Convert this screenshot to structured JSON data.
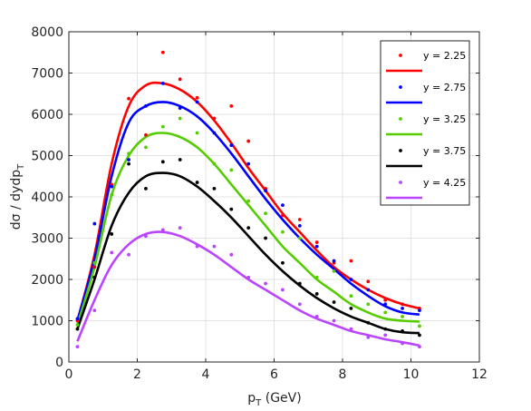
{
  "chart_data": {
    "type": "scatter",
    "xlabel": {
      "main": "p",
      "sub": "T",
      "rest": " (GeV)"
    },
    "ylabel": {
      "main": "dσ / dydp",
      "sub": "T"
    },
    "xlim": [
      0,
      12
    ],
    "ylim": [
      0,
      8000
    ],
    "xticks": [
      "0",
      "2",
      "4",
      "6",
      "8",
      "10",
      "12"
    ],
    "yticks": [
      "0",
      "1000",
      "2000",
      "3000",
      "4000",
      "5000",
      "6000",
      "7000",
      "8000"
    ],
    "grid": true,
    "legend_position": "top-right",
    "x": [
      0.25,
      0.75,
      1.25,
      1.75,
      2.25,
      2.75,
      3.25,
      3.75,
      4.25,
      4.75,
      5.25,
      5.75,
      6.25,
      6.75,
      7.25,
      7.75,
      8.25,
      8.75,
      9.25,
      9.75,
      10.25
    ],
    "series": [
      {
        "name": "y = 2.25",
        "color": "#ff0000",
        "points": [
          1000,
          2300,
          4300,
          6380,
          5500,
          7500,
          6850,
          6400,
          5900,
          6200,
          5350,
          4200,
          3550,
          3450,
          2900,
          2400,
          2450,
          1950,
          1500,
          1400,
          1300
        ],
        "fit": [
          1000,
          2600,
          4800,
          6200,
          6700,
          6750,
          6600,
          6300,
          5850,
          5300,
          4700,
          4150,
          3600,
          3150,
          2700,
          2300,
          2000,
          1750,
          1550,
          1400,
          1300
        ]
      },
      {
        "name": "y = 2.75",
        "color": "#0000ff",
        "points": [
          1050,
          3350,
          4250,
          4900,
          6200,
          6750,
          6150,
          6300,
          5550,
          5250,
          4800,
          4150,
          3800,
          3300,
          2800,
          2450,
          2000,
          1750,
          1400,
          1300,
          1250
        ],
        "fit": [
          1000,
          2500,
          4500,
          5800,
          6200,
          6300,
          6200,
          5950,
          5550,
          5050,
          4500,
          3950,
          3450,
          3000,
          2600,
          2250,
          1900,
          1600,
          1350,
          1200,
          1150
        ]
      },
      {
        "name": "y = 3.25",
        "color": "#55cc00",
        "points": [
          900,
          2400,
          4050,
          5050,
          5200,
          5700,
          5900,
          5550,
          4800,
          4650,
          3900,
          3600,
          3150,
          3000,
          2050,
          2200,
          1600,
          1400,
          1200,
          1100,
          870
        ],
        "fit": [
          900,
          2300,
          4050,
          5000,
          5450,
          5550,
          5450,
          5200,
          4800,
          4300,
          3800,
          3300,
          2800,
          2400,
          2000,
          1700,
          1400,
          1200,
          1050,
          1000,
          980
        ]
      },
      {
        "name": "y = 3.75",
        "color": "#000000",
        "points": [
          800,
          2050,
          3100,
          4800,
          4200,
          4850,
          4900,
          4350,
          4200,
          3700,
          3250,
          3000,
          2400,
          1900,
          1650,
          1450,
          1300,
          950,
          800,
          750,
          650
        ],
        "fit": [
          800,
          2000,
          3300,
          4100,
          4500,
          4580,
          4500,
          4250,
          3900,
          3500,
          3050,
          2600,
          2200,
          1850,
          1550,
          1300,
          1100,
          950,
          800,
          720,
          700
        ]
      },
      {
        "name": "y = 4.25",
        "color": "#bb44ff",
        "points": [
          370,
          1250,
          2650,
          2600,
          3050,
          3200,
          3250,
          2800,
          2800,
          2600,
          2050,
          1900,
          1750,
          1400,
          1100,
          1000,
          800,
          600,
          650,
          450,
          370
        ],
        "fit": [
          500,
          1500,
          2350,
          2850,
          3100,
          3150,
          3050,
          2850,
          2600,
          2300,
          2000,
          1750,
          1500,
          1250,
          1050,
          900,
          750,
          650,
          550,
          480,
          400
        ]
      }
    ]
  }
}
